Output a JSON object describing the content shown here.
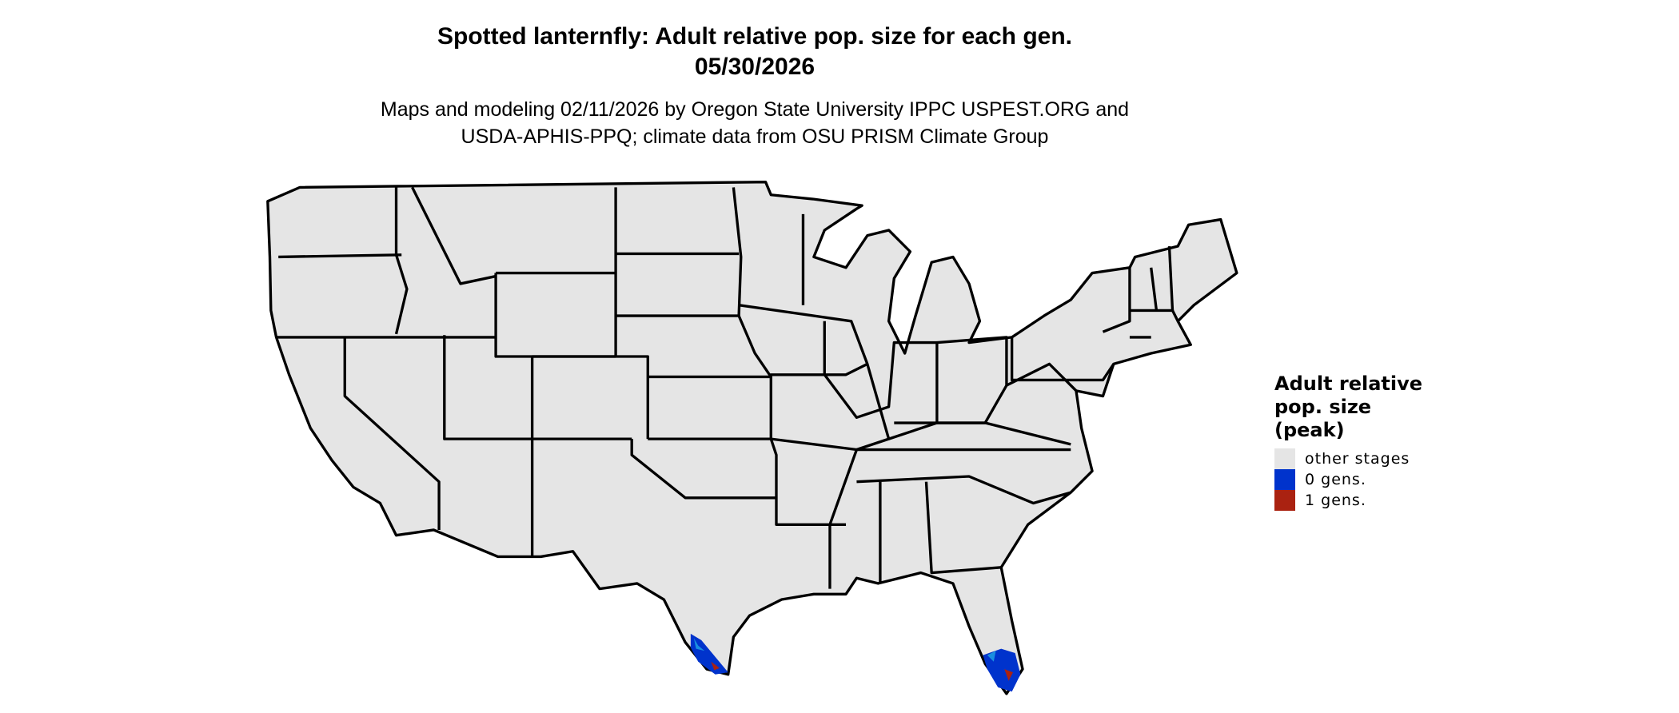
{
  "header": {
    "title_line1": "Spotted lanternfly: Adult relative pop. size for each gen.",
    "title_line2": "05/30/2026",
    "subtitle_line1": "Maps and modeling 02/11/2026 by Oregon State University IPPC USPEST.ORG and",
    "subtitle_line2": "USDA-APHIS-PPQ; climate data from OSU PRISM Climate Group"
  },
  "map": {
    "region": "Contiguous United States",
    "base_fill": "#e5e5e5",
    "border_color": "#000000",
    "highlighted_areas": [
      "South Texas",
      "South Florida"
    ]
  },
  "legend": {
    "title_lines": [
      "Adult relative",
      "pop. size",
      "(peak)"
    ],
    "items": [
      {
        "label": "other stages",
        "color": "#e5e5e5"
      },
      {
        "label": "0 gens.",
        "color": "#0033cc"
      },
      {
        "label": "1 gens.",
        "color": "#aa2211"
      }
    ]
  }
}
